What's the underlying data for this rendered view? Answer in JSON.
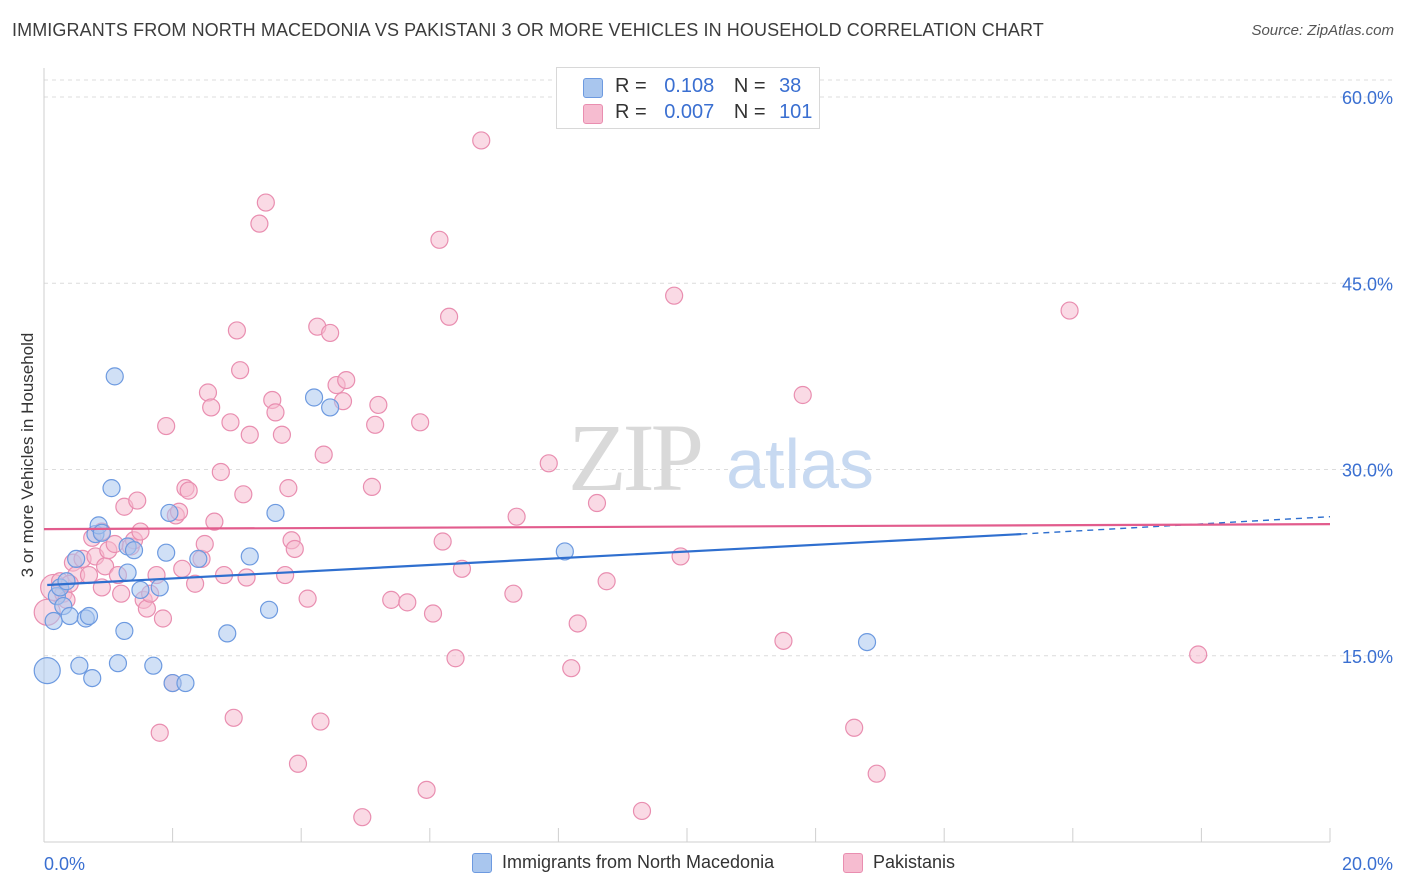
{
  "header": {
    "title": "IMMIGRANTS FROM NORTH MACEDONIA VS PAKISTANI 3 OR MORE VEHICLES IN HOUSEHOLD CORRELATION CHART",
    "source": "Source: ZipAtlas.com"
  },
  "watermark": {
    "zip": "ZIP",
    "atlas": "atlas"
  },
  "colors": {
    "blue_fill": "#a9c6ee",
    "blue_stroke": "#6d9ae0",
    "blue_line": "#2f6fcf",
    "pink_fill": "#f6bcd0",
    "pink_stroke": "#e98eb0",
    "pink_line": "#e25c8d",
    "tick_label": "#3a6fd1"
  },
  "stats": {
    "blue": {
      "r_label": "R =",
      "r_value": "0.108",
      "n_label": "N =",
      "n_value": "38"
    },
    "pink": {
      "r_label": "R =",
      "r_value": "0.007",
      "n_label": "N =",
      "n_value": "101"
    }
  },
  "legend": {
    "blue_label": "Immigrants from North Macedonia",
    "pink_label": "Pakistanis"
  },
  "chart_data": {
    "type": "scatter",
    "title": "IMMIGRANTS FROM NORTH MACEDONIA VS PAKISTANI 3 OR MORE VEHICLES IN HOUSEHOLD CORRELATION CHART",
    "xlabel": "",
    "ylabel": "3 or more Vehicles in Household",
    "xlim": [
      0,
      20
    ],
    "ylim": [
      0,
      62
    ],
    "x_tick_labels": [
      "0.0%",
      "20.0%"
    ],
    "y_ticks": [
      15,
      30,
      45,
      60
    ],
    "y_tick_labels": [
      "15.0%",
      "30.0%",
      "45.0%",
      "60.0%"
    ],
    "x_minor_ticks": [
      2,
      4,
      6,
      8,
      10,
      12,
      14,
      16,
      18,
      20
    ],
    "series": [
      {
        "name": "Immigrants from North Macedonia",
        "color": "blue",
        "trend": {
          "x0": 0.05,
          "y0": 20.7,
          "x1": 15.2,
          "y1": 24.8,
          "dash_to_x": 20,
          "dash_to_y": 26.2
        },
        "points": [
          {
            "x": 0.05,
            "y": 13.8,
            "big": true
          },
          {
            "x": 0.15,
            "y": 17.8
          },
          {
            "x": 0.2,
            "y": 19.8
          },
          {
            "x": 0.25,
            "y": 20.5
          },
          {
            "x": 0.3,
            "y": 19.0
          },
          {
            "x": 0.35,
            "y": 21.0
          },
          {
            "x": 0.4,
            "y": 18.2
          },
          {
            "x": 0.5,
            "y": 22.8
          },
          {
            "x": 0.55,
            "y": 14.2
          },
          {
            "x": 0.65,
            "y": 18.0
          },
          {
            "x": 0.7,
            "y": 18.2
          },
          {
            "x": 0.75,
            "y": 13.2
          },
          {
            "x": 0.8,
            "y": 24.8
          },
          {
            "x": 0.85,
            "y": 25.5
          },
          {
            "x": 0.9,
            "y": 24.9
          },
          {
            "x": 1.05,
            "y": 28.5
          },
          {
            "x": 1.1,
            "y": 37.5
          },
          {
            "x": 1.15,
            "y": 14.4
          },
          {
            "x": 1.25,
            "y": 17.0
          },
          {
            "x": 1.3,
            "y": 21.7
          },
          {
            "x": 1.3,
            "y": 23.8
          },
          {
            "x": 1.4,
            "y": 23.5
          },
          {
            "x": 1.5,
            "y": 20.3
          },
          {
            "x": 1.7,
            "y": 14.2
          },
          {
            "x": 1.8,
            "y": 20.5
          },
          {
            "x": 1.9,
            "y": 23.3
          },
          {
            "x": 2.0,
            "y": 12.8
          },
          {
            "x": 2.2,
            "y": 12.8
          },
          {
            "x": 1.95,
            "y": 26.5
          },
          {
            "x": 2.4,
            "y": 22.8
          },
          {
            "x": 2.85,
            "y": 16.8
          },
          {
            "x": 3.2,
            "y": 23.0
          },
          {
            "x": 3.5,
            "y": 18.7
          },
          {
            "x": 3.6,
            "y": 26.5
          },
          {
            "x": 4.2,
            "y": 35.8
          },
          {
            "x": 4.45,
            "y": 35.0
          },
          {
            "x": 8.1,
            "y": 23.4
          },
          {
            "x": 12.8,
            "y": 16.1
          }
        ]
      },
      {
        "name": "Pakistanis",
        "color": "pink",
        "trend": {
          "x0": 0.0,
          "y0": 25.2,
          "x1": 20.0,
          "y1": 25.6
        },
        "points": [
          {
            "x": 0.05,
            "y": 18.5,
            "big": true
          },
          {
            "x": 0.15,
            "y": 20.5,
            "big": true
          },
          {
            "x": 0.25,
            "y": 21.0
          },
          {
            "x": 0.3,
            "y": 20.0
          },
          {
            "x": 0.35,
            "y": 19.5
          },
          {
            "x": 0.45,
            "y": 22.5
          },
          {
            "x": 0.5,
            "y": 21.5
          },
          {
            "x": 0.6,
            "y": 22.8
          },
          {
            "x": 0.7,
            "y": 21.5
          },
          {
            "x": 0.75,
            "y": 24.5
          },
          {
            "x": 0.8,
            "y": 23.0
          },
          {
            "x": 0.9,
            "y": 25.0
          },
          {
            "x": 0.9,
            "y": 20.5
          },
          {
            "x": 0.95,
            "y": 22.2
          },
          {
            "x": 1.0,
            "y": 23.5
          },
          {
            "x": 1.1,
            "y": 24.0
          },
          {
            "x": 1.15,
            "y": 21.5
          },
          {
            "x": 1.2,
            "y": 20.0
          },
          {
            "x": 1.25,
            "y": 27.0
          },
          {
            "x": 1.35,
            "y": 23.8
          },
          {
            "x": 1.4,
            "y": 24.3
          },
          {
            "x": 1.45,
            "y": 27.5
          },
          {
            "x": 1.5,
            "y": 25.0
          },
          {
            "x": 1.55,
            "y": 19.5
          },
          {
            "x": 1.6,
            "y": 18.8
          },
          {
            "x": 1.65,
            "y": 20.0
          },
          {
            "x": 1.75,
            "y": 21.5
          },
          {
            "x": 1.8,
            "y": 8.8
          },
          {
            "x": 1.85,
            "y": 18.0
          },
          {
            "x": 1.9,
            "y": 33.5
          },
          {
            "x": 2.0,
            "y": 12.8
          },
          {
            "x": 2.05,
            "y": 26.3
          },
          {
            "x": 2.1,
            "y": 26.6
          },
          {
            "x": 2.15,
            "y": 22.0
          },
          {
            "x": 2.2,
            "y": 28.5
          },
          {
            "x": 2.25,
            "y": 28.3
          },
          {
            "x": 2.35,
            "y": 20.8
          },
          {
            "x": 2.45,
            "y": 22.8
          },
          {
            "x": 2.5,
            "y": 24.0
          },
          {
            "x": 2.55,
            "y": 36.2
          },
          {
            "x": 2.6,
            "y": 35.0
          },
          {
            "x": 2.65,
            "y": 25.8
          },
          {
            "x": 2.75,
            "y": 29.8
          },
          {
            "x": 2.8,
            "y": 21.5
          },
          {
            "x": 2.9,
            "y": 33.8
          },
          {
            "x": 2.95,
            "y": 10.0
          },
          {
            "x": 3.0,
            "y": 41.2
          },
          {
            "x": 3.05,
            "y": 38.0
          },
          {
            "x": 3.1,
            "y": 28.0
          },
          {
            "x": 3.15,
            "y": 21.3
          },
          {
            "x": 3.2,
            "y": 32.8
          },
          {
            "x": 3.35,
            "y": 49.8
          },
          {
            "x": 3.45,
            "y": 51.5
          },
          {
            "x": 3.55,
            "y": 35.6
          },
          {
            "x": 3.6,
            "y": 34.6
          },
          {
            "x": 3.7,
            "y": 32.8
          },
          {
            "x": 3.75,
            "y": 21.5
          },
          {
            "x": 3.8,
            "y": 28.5
          },
          {
            "x": 3.85,
            "y": 24.3
          },
          {
            "x": 3.9,
            "y": 23.6
          },
          {
            "x": 3.95,
            "y": 6.3
          },
          {
            "x": 4.1,
            "y": 19.6
          },
          {
            "x": 4.25,
            "y": 41.5
          },
          {
            "x": 4.3,
            "y": 9.7
          },
          {
            "x": 4.35,
            "y": 31.2
          },
          {
            "x": 4.45,
            "y": 41.0
          },
          {
            "x": 4.55,
            "y": 36.8
          },
          {
            "x": 4.65,
            "y": 35.5
          },
          {
            "x": 4.7,
            "y": 37.2
          },
          {
            "x": 4.95,
            "y": 2.0
          },
          {
            "x": 5.1,
            "y": 28.6
          },
          {
            "x": 5.15,
            "y": 33.6
          },
          {
            "x": 5.2,
            "y": 35.2
          },
          {
            "x": 5.4,
            "y": 19.5
          },
          {
            "x": 5.65,
            "y": 19.3
          },
          {
            "x": 5.85,
            "y": 33.8
          },
          {
            "x": 5.95,
            "y": 4.2
          },
          {
            "x": 6.05,
            "y": 18.4
          },
          {
            "x": 6.15,
            "y": 48.5
          },
          {
            "x": 6.2,
            "y": 24.2
          },
          {
            "x": 6.3,
            "y": 42.3
          },
          {
            "x": 6.4,
            "y": 14.8
          },
          {
            "x": 6.5,
            "y": 22.0
          },
          {
            "x": 6.8,
            "y": 56.5
          },
          {
            "x": 7.3,
            "y": 20.0
          },
          {
            "x": 7.35,
            "y": 26.2
          },
          {
            "x": 7.85,
            "y": 30.5
          },
          {
            "x": 8.2,
            "y": 14.0
          },
          {
            "x": 8.3,
            "y": 17.6
          },
          {
            "x": 8.6,
            "y": 27.3
          },
          {
            "x": 8.75,
            "y": 21.0
          },
          {
            "x": 9.3,
            "y": 2.5
          },
          {
            "x": 9.8,
            "y": 44.0
          },
          {
            "x": 9.9,
            "y": 23.0
          },
          {
            "x": 11.5,
            "y": 16.2
          },
          {
            "x": 11.8,
            "y": 36.0
          },
          {
            "x": 12.6,
            "y": 9.2
          },
          {
            "x": 12.95,
            "y": 5.5
          },
          {
            "x": 15.95,
            "y": 42.8
          },
          {
            "x": 17.95,
            "y": 15.1
          },
          {
            "x": 0.4,
            "y": 20.8
          }
        ]
      }
    ]
  }
}
